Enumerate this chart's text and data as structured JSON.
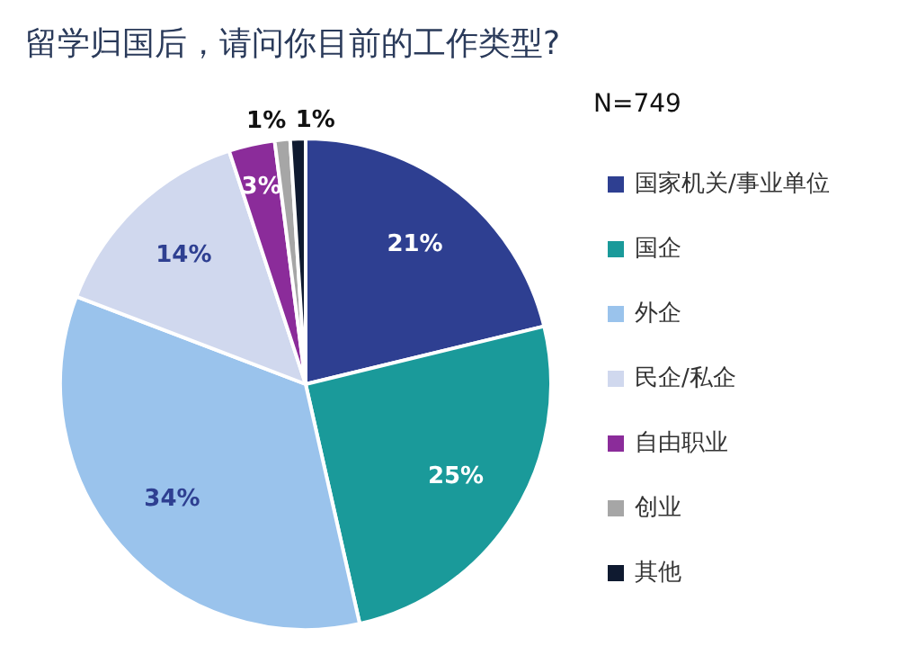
{
  "chart_data": {
    "type": "pie",
    "title": "留学归国后，请问你目前的工作类型?",
    "subtitle": "N=749",
    "categories": [
      "国家机关/事业单位",
      "国企",
      "外企",
      "民企/私企",
      "自由职业",
      "创业",
      "其他"
    ],
    "values": [
      21,
      25,
      34,
      14,
      3,
      1,
      1
    ],
    "colors": [
      "#2e3f91",
      "#1a9a9a",
      "#9ac3ec",
      "#d0d8ee",
      "#8b2c9a",
      "#a6a6a6",
      "#0f1a30"
    ],
    "value_labels": [
      "21%",
      "25%",
      "34%",
      "14%",
      "3%",
      "1%",
      "1%"
    ],
    "legend": "right"
  }
}
